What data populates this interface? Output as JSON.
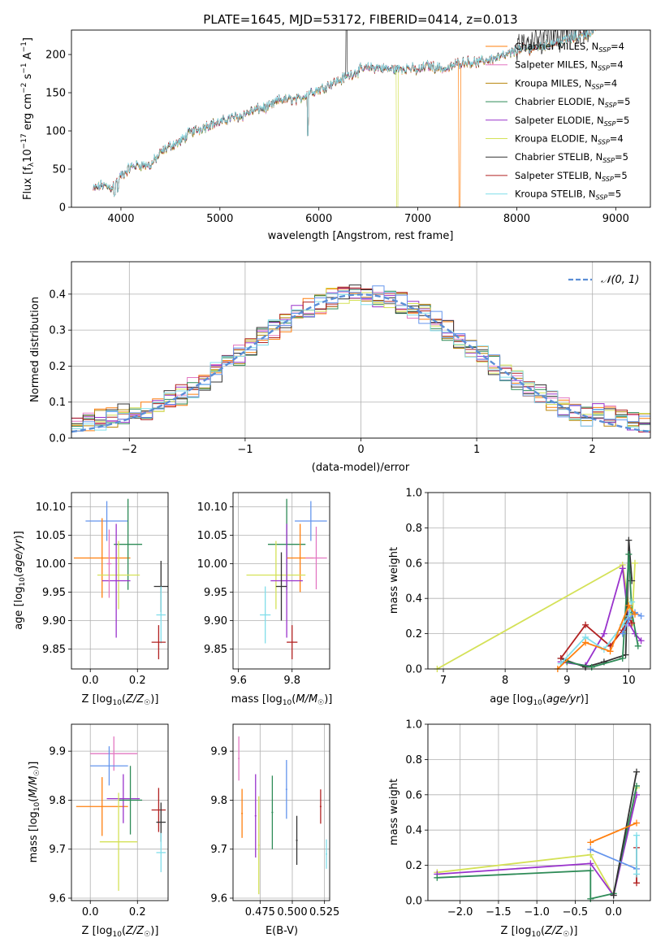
{
  "chart_data": [
    {
      "type": "line",
      "title": "PLATE=1645, MJD=53172, FIBERID=0414, z=0.013",
      "xlabel": "wavelength [Angstrom, rest frame]",
      "ylabel": "Flux [f_λ10^-17 erg cm^-2 s^-1 A^-1]",
      "xlim": [
        3500,
        9350
      ],
      "ylim": [
        0,
        232
      ],
      "xticks": [
        4000,
        5000,
        6000,
        7000,
        8000,
        9000
      ],
      "yticks": [
        0,
        50,
        100,
        150,
        200
      ],
      "legend_position": "top-right",
      "x": [
        3720,
        3800,
        3900,
        4000,
        4100,
        4200,
        4300,
        4400,
        4500,
        4600,
        4700,
        4800,
        4900,
        5000,
        5100,
        5200,
        5300,
        5400,
        5500,
        5600,
        5700,
        5800,
        5900,
        6000,
        6100,
        6200,
        6300,
        6400,
        6500,
        6600,
        6700,
        6800,
        6900,
        7000,
        7100,
        7200,
        7300,
        7400,
        7500,
        7600,
        7700,
        7800,
        7900,
        8000,
        8100,
        8200,
        8300,
        8400,
        8500,
        8600,
        8700,
        8800
      ],
      "y": [
        22,
        28,
        25,
        40,
        52,
        55,
        54,
        70,
        80,
        85,
        97,
        102,
        108,
        110,
        116,
        118,
        124,
        128,
        130,
        140,
        140,
        140,
        150,
        153,
        160,
        165,
        172,
        178,
        182,
        182,
        180,
        180,
        182,
        178,
        185,
        182,
        180,
        188,
        190,
        188,
        192,
        195,
        198,
        205,
        206,
        208,
        212,
        215,
        218,
        222,
        226,
        230
      ],
      "series": [
        {
          "name": "Chabrier MILES, N_SSP=4",
          "color": "#ff7f0e"
        },
        {
          "name": "Salpeter MILES, N_SSP=4",
          "color": "#e377c2"
        },
        {
          "name": "Kroupa MILES, N_SSP=4",
          "color": "#b8860b"
        },
        {
          "name": "Chabrier ELODIE, N_SSP=5",
          "color": "#2e8b57"
        },
        {
          "name": "Salpeter ELODIE, N_SSP=5",
          "color": "#9932cc"
        },
        {
          "name": "Kroupa ELODIE, N_SSP=4",
          "color": "#d4e157"
        },
        {
          "name": "Chabrier STELIB, N_SSP=5",
          "color": "#333333"
        },
        {
          "name": "Salpeter STELIB, N_SSP=5",
          "color": "#b22222"
        },
        {
          "name": "Kroupa STELIB, N_SSP=5",
          "color": "#80deea"
        }
      ]
    },
    {
      "type": "line",
      "xlabel": "(data-model)/error",
      "ylabel": "Normed distribution",
      "xlim": [
        -2.5,
        2.5
      ],
      "ylim": [
        0,
        0.49
      ],
      "xticks": [
        -2,
        -1,
        0,
        1,
        2
      ],
      "yticks": [
        0.0,
        0.1,
        0.2,
        0.3,
        0.4
      ],
      "grid": true,
      "legend_position": "top-right",
      "legend": "𝒩(0, 1)",
      "bin_edges": [
        -2.5,
        -2.4,
        -2.3,
        -2.2,
        -2.1,
        -2.0,
        -1.9,
        -1.8,
        -1.7,
        -1.6,
        -1.5,
        -1.4,
        -1.3,
        -1.2,
        -1.1,
        -1.0,
        -0.9,
        -0.8,
        -0.7,
        -0.6,
        -0.5,
        -0.4,
        -0.3,
        -0.2,
        -0.1,
        0.0,
        0.1,
        0.2,
        0.3,
        0.4,
        0.5,
        0.6,
        0.7,
        0.8,
        0.9,
        1.0,
        1.1,
        1.2,
        1.3,
        1.4,
        1.5,
        1.6,
        1.7,
        1.8,
        1.9,
        2.0,
        2.1,
        2.2,
        2.3,
        2.4,
        2.5
      ],
      "hist_colors": [
        "#ff7f0e",
        "#e377c2",
        "#b8860b",
        "#2e8b57",
        "#9932cc",
        "#d4e157",
        "#333333",
        "#b22222",
        "#80deea",
        "#6495ed"
      ],
      "normal_color": "#5b8ed6"
    },
    {
      "type": "scatter",
      "xlabel": "Z [log10(Z/Z☉)]",
      "ylabel": "age [log10(age/yr)]",
      "xlim": [
        -0.08,
        0.33
      ],
      "ylim": [
        9.815,
        10.125
      ],
      "xticks": [
        0.0,
        0.2
      ],
      "yticks": [
        9.85,
        9.9,
        9.95,
        10.0,
        10.05,
        10.1
      ],
      "points": [
        {
          "x": 0.07,
          "y": 10.075,
          "xerr": 0.09,
          "yerr": 0.035,
          "color": "#6495ed"
        },
        {
          "x": 0.05,
          "y": 10.01,
          "xerr": 0.12,
          "yerr": 0.07,
          "color": "#ff7f0e"
        },
        {
          "x": 0.16,
          "y": 10.034,
          "xerr": 0.06,
          "yerr": 0.08,
          "color": "#2e8b57"
        },
        {
          "x": 0.12,
          "y": 9.98,
          "xerr": 0.09,
          "yerr": 0.06,
          "color": "#d4e157"
        },
        {
          "x": 0.11,
          "y": 9.97,
          "xerr": 0.06,
          "yerr": 0.1,
          "color": "#9932cc"
        },
        {
          "x": 0.3,
          "y": 9.96,
          "xerr": 0.03,
          "yerr": 0.045,
          "color": "#333333"
        },
        {
          "x": 0.3,
          "y": 9.91,
          "xerr": 0.02,
          "yerr": 0.05,
          "color": "#80deea"
        },
        {
          "x": 0.29,
          "y": 9.862,
          "xerr": 0.03,
          "yerr": 0.03,
          "color": "#b22222"
        },
        {
          "x": 0.08,
          "y": 10.0,
          "xerr": 0.01,
          "yerr": 0.06,
          "color": "#e377c2"
        }
      ]
    },
    {
      "type": "scatter",
      "xlabel": "mass [log10(M/M☉)]",
      "xlim": [
        9.58,
        9.94
      ],
      "ylim": [
        9.815,
        10.125
      ],
      "xticks": [
        9.6,
        9.8
      ],
      "yticks": [
        9.85,
        9.9,
        9.95,
        10.0,
        10.05,
        10.1
      ],
      "points": [
        {
          "x": 9.87,
          "y": 10.075,
          "xerr": 0.06,
          "yerr": 0.035,
          "color": "#6495ed"
        },
        {
          "x": 9.78,
          "y": 10.034,
          "xerr": 0.07,
          "yerr": 0.08,
          "color": "#2e8b57"
        },
        {
          "x": 9.83,
          "y": 10.01,
          "xerr": 0.05,
          "yerr": 0.06,
          "color": "#ff7f0e"
        },
        {
          "x": 9.89,
          "y": 10.01,
          "xerr": 0.04,
          "yerr": 0.055,
          "color": "#e377c2"
        },
        {
          "x": 9.74,
          "y": 9.98,
          "xerr": 0.11,
          "yerr": 0.06,
          "color": "#d4e157"
        },
        {
          "x": 9.78,
          "y": 9.97,
          "xerr": 0.06,
          "yerr": 0.1,
          "color": "#9932cc"
        },
        {
          "x": 9.76,
          "y": 9.96,
          "xerr": 0.02,
          "yerr": 0.06,
          "color": "#333333"
        },
        {
          "x": 9.7,
          "y": 9.91,
          "xerr": 0.02,
          "yerr": 0.05,
          "color": "#80deea"
        },
        {
          "x": 9.8,
          "y": 9.862,
          "xerr": 0.02,
          "yerr": 0.03,
          "color": "#b22222"
        }
      ]
    },
    {
      "type": "line",
      "xlabel": "age [log10(age/yr)]",
      "ylabel": "mass weight",
      "xlim": [
        6.75,
        10.35
      ],
      "ylim": [
        0,
        1.0
      ],
      "xticks": [
        7,
        8,
        9,
        10
      ],
      "yticks": [
        0.0,
        0.2,
        0.4,
        0.6,
        0.8,
        1.0
      ],
      "grid": true,
      "series": [
        {
          "color": "#d4e157",
          "x": [
            6.9,
            9.9,
            10.0,
            10.05,
            10.1
          ],
          "y": [
            0.0,
            0.59,
            0.36,
            0.25,
            0.6
          ]
        },
        {
          "color": "#9932cc",
          "x": [
            8.9,
            9.3,
            9.6,
            9.9,
            10.0,
            10.1,
            10.2
          ],
          "y": [
            0.04,
            0.02,
            0.2,
            0.57,
            0.26,
            0.2,
            0.16
          ]
        },
        {
          "color": "#333333",
          "x": [
            8.9,
            9.3,
            9.6,
            9.95,
            10.0,
            10.05
          ],
          "y": [
            0.06,
            0.01,
            0.04,
            0.08,
            0.73,
            0.5
          ]
        },
        {
          "color": "#2e8b57",
          "x": [
            9.0,
            9.4,
            9.9,
            10.0,
            10.05,
            10.15
          ],
          "y": [
            0.04,
            0.01,
            0.06,
            0.65,
            0.32,
            0.13
          ]
        },
        {
          "color": "#b22222",
          "x": [
            8.9,
            9.3,
            9.7,
            9.9,
            10.0,
            10.05
          ],
          "y": [
            0.06,
            0.25,
            0.13,
            0.22,
            0.29,
            0.26
          ]
        },
        {
          "color": "#80deea",
          "x": [
            8.9,
            9.3,
            9.6,
            9.9,
            10.0,
            10.05
          ],
          "y": [
            0.03,
            0.18,
            0.11,
            0.25,
            0.3,
            0.38
          ]
        },
        {
          "color": "#6495ed",
          "x": [
            9.9,
            10.0,
            10.1,
            10.2
          ],
          "y": [
            0.2,
            0.28,
            0.32,
            0.3
          ]
        },
        {
          "color": "#ff7f0e",
          "x": [
            8.85,
            9.3,
            9.7,
            10.0,
            10.1
          ],
          "y": [
            0.0,
            0.15,
            0.1,
            0.36,
            0.31
          ]
        }
      ]
    },
    {
      "type": "scatter",
      "xlabel": "Z [log10(Z/Z☉)]",
      "ylabel": "mass [log10(M/M☉)]",
      "xlim": [
        -0.08,
        0.33
      ],
      "ylim": [
        9.595,
        9.955
      ],
      "xticks": [
        0.0,
        0.2
      ],
      "yticks": [
        9.6,
        9.7,
        9.8,
        9.9
      ],
      "points": [
        {
          "x": 0.1,
          "y": 9.895,
          "xerr": 0.1,
          "yerr": 0.035,
          "color": "#e377c2"
        },
        {
          "x": 0.08,
          "y": 9.87,
          "xerr": 0.08,
          "yerr": 0.04,
          "color": "#6495ed"
        },
        {
          "x": 0.05,
          "y": 9.787,
          "xerr": 0.11,
          "yerr": 0.06,
          "color": "#ff7f0e"
        },
        {
          "x": 0.14,
          "y": 9.803,
          "xerr": 0.07,
          "yerr": 0.05,
          "color": "#9932cc"
        },
        {
          "x": 0.17,
          "y": 9.8,
          "xerr": 0.05,
          "yerr": 0.07,
          "color": "#2e8b57"
        },
        {
          "x": 0.12,
          "y": 9.715,
          "xerr": 0.08,
          "yerr": 0.1,
          "color": "#d4e157"
        },
        {
          "x": 0.29,
          "y": 9.78,
          "xerr": 0.03,
          "yerr": 0.045,
          "color": "#b22222"
        },
        {
          "x": 0.3,
          "y": 9.755,
          "xerr": 0.02,
          "yerr": 0.04,
          "color": "#333333"
        },
        {
          "x": 0.3,
          "y": 9.693,
          "xerr": 0.02,
          "yerr": 0.04,
          "color": "#80deea"
        }
      ]
    },
    {
      "type": "scatter",
      "xlabel": "E(B-V)",
      "xlim": [
        0.454,
        0.529
      ],
      "ylim": [
        9.595,
        9.955
      ],
      "xticks": [
        0.475,
        0.5,
        0.525
      ],
      "xtick_labels": [
        "0.475",
        "0.500",
        "0.525"
      ],
      "yticks": [
        9.6,
        9.7,
        9.8,
        9.9
      ],
      "points": [
        {
          "x": 0.4585,
          "y": 9.885,
          "yerr": 0.045,
          "color": "#e377c2"
        },
        {
          "x": 0.461,
          "y": 9.773,
          "yerr": 0.05,
          "color": "#ff7f0e"
        },
        {
          "x": 0.4715,
          "y": 9.768,
          "yerr": 0.085,
          "color": "#9932cc"
        },
        {
          "x": 0.474,
          "y": 9.708,
          "yerr": 0.1,
          "color": "#d4e157"
        },
        {
          "x": 0.4845,
          "y": 9.775,
          "yerr": 0.075,
          "color": "#2e8b57"
        },
        {
          "x": 0.4955,
          "y": 9.822,
          "yerr": 0.06,
          "color": "#6495ed"
        },
        {
          "x": 0.5035,
          "y": 9.718,
          "yerr": 0.05,
          "color": "#333333"
        },
        {
          "x": 0.522,
          "y": 9.787,
          "yerr": 0.035,
          "color": "#b22222"
        },
        {
          "x": 0.5265,
          "y": 9.69,
          "yerr": 0.03,
          "color": "#80deea"
        }
      ]
    },
    {
      "type": "line",
      "xlabel": "Z [log10(Z/Z☉)]",
      "ylabel": "mass weight",
      "xlim": [
        -2.42,
        0.48
      ],
      "ylim": [
        0,
        1.0
      ],
      "xticks": [
        -2.0,
        -1.5,
        -1.0,
        -0.5,
        0.0
      ],
      "yticks": [
        0.0,
        0.2,
        0.4,
        0.6,
        0.8,
        1.0
      ],
      "grid": true,
      "series": [
        {
          "color": "#d4e157",
          "x": [
            -2.3,
            -0.3,
            0.0,
            0.3
          ],
          "y": [
            0.16,
            0.26,
            0.03,
            0.64
          ]
        },
        {
          "color": "#9932cc",
          "x": [
            -2.3,
            -0.3,
            0.0,
            0.3
          ],
          "y": [
            0.15,
            0.21,
            0.03,
            0.6
          ]
        },
        {
          "color": "#2e8b57",
          "x": [
            -2.3,
            -0.3,
            -0.3,
            0.0,
            0.3
          ],
          "y": [
            0.13,
            0.17,
            0.01,
            0.04,
            0.65
          ]
        },
        {
          "color": "#333333",
          "x": [
            0.0,
            0.3
          ],
          "y": [
            0.03,
            0.73
          ]
        },
        {
          "color": "#ff7f0e",
          "x": [
            -0.3,
            0.3
          ],
          "y": [
            0.33,
            0.44
          ]
        },
        {
          "color": "#6495ed",
          "x": [
            -0.3,
            0.3
          ],
          "y": [
            0.29,
            0.18
          ]
        },
        {
          "color": "#b22222",
          "x": [
            0.3,
            0.3
          ],
          "y": [
            0.1,
            0.3
          ]
        },
        {
          "color": "#80deea",
          "x": [
            0.3,
            0.3
          ],
          "y": [
            0.15,
            0.37
          ]
        }
      ]
    }
  ]
}
